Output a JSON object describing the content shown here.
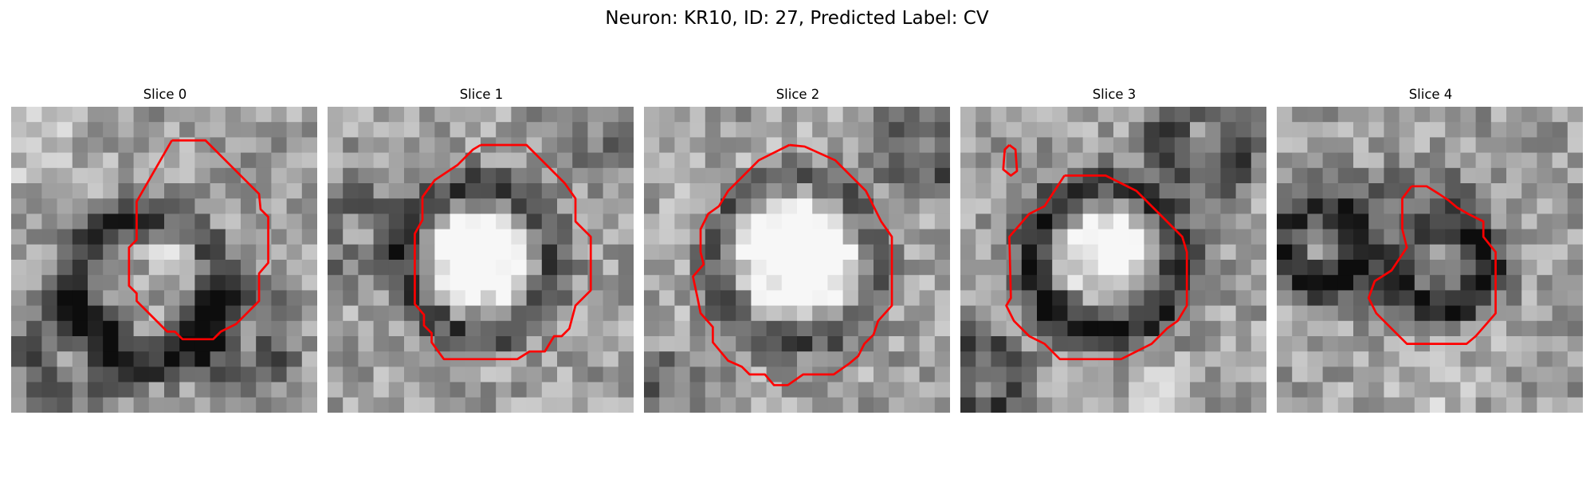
{
  "figure": {
    "title": "Neuron: KR10, ID: 27, Predicted Label: CV"
  },
  "panels": [
    {
      "title": "Slice 0",
      "contours": [
        [
          [
            10.5,
            2.2
          ],
          [
            12.7,
            2.2
          ],
          [
            14.2,
            3.7
          ],
          [
            16.2,
            5.7
          ],
          [
            16.3,
            6.7
          ],
          [
            16.8,
            7.2
          ],
          [
            16.8,
            10.2
          ],
          [
            16.2,
            10.9
          ],
          [
            16.2,
            12.7
          ],
          [
            14.7,
            14.2
          ],
          [
            13.7,
            14.7
          ],
          [
            13.2,
            15.2
          ],
          [
            11.2,
            15.2
          ],
          [
            10.7,
            14.7
          ],
          [
            10.2,
            14.7
          ],
          [
            8.2,
            12.7
          ],
          [
            8.2,
            12.2
          ],
          [
            7.7,
            11.7
          ],
          [
            7.7,
            9.2
          ],
          [
            8.2,
            8.7
          ],
          [
            8.2,
            6.2
          ],
          [
            10.5,
            2.2
          ]
        ]
      ]
    },
    {
      "title": "Slice 1",
      "contours": [
        [
          [
            10,
            2.5
          ],
          [
            13,
            2.5
          ],
          [
            14,
            3.5
          ],
          [
            15.5,
            5
          ],
          [
            16.2,
            6
          ],
          [
            16.2,
            7.5
          ],
          [
            17.2,
            8.5
          ],
          [
            17.2,
            12
          ],
          [
            16.2,
            13
          ],
          [
            15.8,
            14.5
          ],
          [
            15.3,
            15
          ],
          [
            14.8,
            15
          ],
          [
            14.2,
            16
          ],
          [
            13.2,
            16
          ],
          [
            12.4,
            16.5
          ],
          [
            7.6,
            16.5
          ],
          [
            6.8,
            15.4
          ],
          [
            6.8,
            14.8
          ],
          [
            6.3,
            14.3
          ],
          [
            6.3,
            13.6
          ],
          [
            5.7,
            12.9
          ],
          [
            5.7,
            8.3
          ],
          [
            6.2,
            7.4
          ],
          [
            6.2,
            5.9
          ],
          [
            7,
            4.8
          ],
          [
            8.5,
            3.8
          ],
          [
            9.5,
            2.8
          ],
          [
            10,
            2.5
          ]
        ]
      ]
    },
    {
      "title": "Slice 2",
      "contours": [
        [
          [
            9.5,
            2.5
          ],
          [
            10.5,
            2.6
          ],
          [
            12.5,
            3.5
          ],
          [
            13.5,
            4.5
          ],
          [
            14.5,
            5.5
          ],
          [
            15,
            6.5
          ],
          [
            15.5,
            7.5
          ],
          [
            16.2,
            8.5
          ],
          [
            16.2,
            13
          ],
          [
            15.3,
            14
          ],
          [
            15,
            14.9
          ],
          [
            14.4,
            15.5
          ],
          [
            14,
            16.3
          ],
          [
            13.4,
            16.8
          ],
          [
            12.4,
            17.5
          ],
          [
            10.4,
            17.5
          ],
          [
            9.4,
            18.2
          ],
          [
            8.5,
            18.2
          ],
          [
            7.9,
            17.5
          ],
          [
            6.9,
            17.5
          ],
          [
            6.4,
            17
          ],
          [
            5.5,
            16.6
          ],
          [
            4.5,
            15.4
          ],
          [
            4.5,
            14.4
          ],
          [
            3.7,
            13.5
          ],
          [
            3.5,
            12.5
          ],
          [
            3.2,
            11.1
          ],
          [
            3.9,
            10.3
          ],
          [
            3.7,
            9.5
          ],
          [
            3.7,
            8
          ],
          [
            4.2,
            7
          ],
          [
            4.9,
            6.5
          ],
          [
            5.5,
            5.5
          ],
          [
            6.5,
            4.5
          ],
          [
            7.5,
            3.5
          ],
          [
            8.5,
            3
          ],
          [
            9.5,
            2.5
          ]
        ]
      ],
      "marker": [
        [
          9.3,
          2.6
        ],
        [
          10.3,
          2.6
        ]
      ]
    },
    {
      "title": "Slice 3",
      "contours": [
        [
          [
            6.8,
            4.5
          ],
          [
            9.5,
            4.5
          ],
          [
            10.5,
            5
          ],
          [
            11.5,
            5.5
          ],
          [
            13.5,
            7.5
          ],
          [
            14.5,
            8.5
          ],
          [
            14.8,
            9.5
          ],
          [
            14.8,
            13
          ],
          [
            14.2,
            14
          ],
          [
            13.5,
            14.5
          ],
          [
            12.5,
            15.5
          ],
          [
            11.5,
            16
          ],
          [
            10.5,
            16.5
          ],
          [
            6.5,
            16.5
          ],
          [
            5.5,
            15.5
          ],
          [
            4.5,
            15
          ],
          [
            3.5,
            14
          ],
          [
            3,
            13
          ],
          [
            3.3,
            12.5
          ],
          [
            3.2,
            8.5
          ],
          [
            4.5,
            7
          ],
          [
            5.5,
            6.5
          ],
          [
            6.8,
            4.5
          ]
        ],
        [
          [
            3.2,
            2.5
          ],
          [
            3.6,
            2.8
          ],
          [
            3.7,
            4.2
          ],
          [
            3.3,
            4.5
          ],
          [
            2.8,
            4.1
          ],
          [
            2.9,
            2.8
          ],
          [
            3.2,
            2.5
          ]
        ]
      ]
    },
    {
      "title": "Slice 4",
      "contours": [
        [
          [
            8.8,
            5.2
          ],
          [
            9.8,
            5.2
          ],
          [
            10.6,
            5.7
          ],
          [
            11.2,
            6.1
          ],
          [
            11.8,
            6.6
          ],
          [
            12.5,
            7
          ],
          [
            13.5,
            7.5
          ],
          [
            13.5,
            8.5
          ],
          [
            14.3,
            9.5
          ],
          [
            14.3,
            11.5
          ],
          [
            14.3,
            13.5
          ],
          [
            13.7,
            14.2
          ],
          [
            13,
            15
          ],
          [
            12.4,
            15.5
          ],
          [
            8.5,
            15.5
          ],
          [
            7.5,
            14.5
          ],
          [
            7,
            14
          ],
          [
            6.5,
            13.5
          ],
          [
            6,
            12.5
          ],
          [
            6.4,
            11.4
          ],
          [
            7.5,
            10.7
          ],
          [
            8.5,
            9.2
          ],
          [
            8.2,
            8
          ],
          [
            8.2,
            6
          ],
          [
            8.8,
            5.2
          ]
        ]
      ]
    }
  ]
}
